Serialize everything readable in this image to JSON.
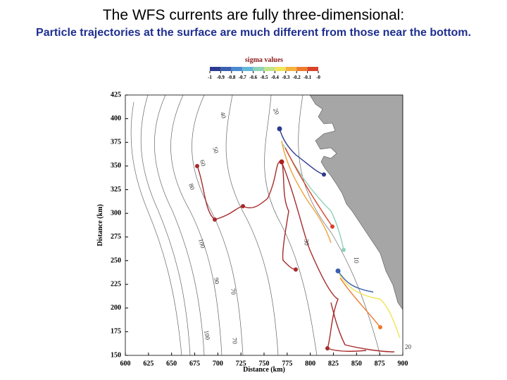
{
  "chart_data": {
    "type": "map",
    "title": "The WFS currents are fully three-dimensional:",
    "subtitle": "Particle trajectories at the surface are much different from those near the bottom.",
    "xlabel": "Distance (km)",
    "ylabel": "Distance (km)",
    "xlim": [
      600,
      900
    ],
    "ylim": [
      150,
      425
    ],
    "xticks": [
      600,
      625,
      650,
      675,
      700,
      725,
      750,
      775,
      800,
      825,
      850,
      875,
      900
    ],
    "yticks": [
      150,
      175,
      200,
      225,
      250,
      275,
      300,
      325,
      350,
      375,
      400,
      425
    ],
    "colorbar": {
      "title": "sigma values",
      "ticks": [
        -1,
        -0.9,
        -0.8,
        -0.7,
        -0.6,
        -0.5,
        -0.4,
        -0.3,
        -0.2,
        -0.1,
        {
          "value": 0,
          "label": "-0"
        }
      ],
      "colors": [
        "#2b3a8f",
        "#3a5fb0",
        "#4a8bd0",
        "#63b7d8",
        "#8fd3b8",
        "#c3e38a",
        "#f1e35a",
        "#f6b13e",
        "#ee7a2e",
        "#d8432a",
        "#b01f1f"
      ]
    },
    "contour_labels": [
      "20",
      "40",
      "50",
      "60",
      "80",
      "100",
      "30",
      "10",
      "70",
      "90",
      "70",
      "100",
      "20"
    ]
  }
}
